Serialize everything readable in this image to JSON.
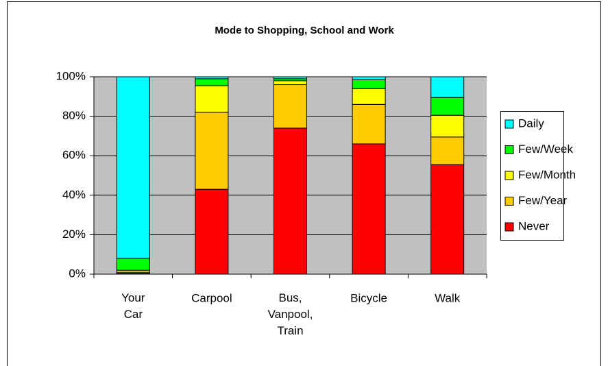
{
  "chart_data": {
    "type": "stacked_bar",
    "title": "Mode to Shopping, School and Work",
    "categories": [
      "Your Car",
      "Carpool",
      "Bus, Vanpool, Train",
      "Bicycle",
      "Walk"
    ],
    "series": [
      {
        "name": "Never",
        "color": "#ff0000",
        "values": [
          0.5,
          43,
          74,
          66,
          55.5
        ]
      },
      {
        "name": "Few/Year",
        "color": "#ffcc00",
        "values": [
          0.5,
          39,
          22,
          20,
          14
        ]
      },
      {
        "name": "Few/Month",
        "color": "#ffff00",
        "values": [
          1,
          13.5,
          2,
          8,
          11
        ]
      },
      {
        "name": "Few/Week",
        "color": "#00ff00",
        "values": [
          6,
          3.5,
          1,
          4.5,
          9
        ]
      },
      {
        "name": "Daily",
        "color": "#00ffff",
        "values": [
          92,
          1,
          1,
          1.5,
          10.5
        ]
      }
    ],
    "ylim": [
      0,
      100
    ],
    "yticks": [
      {
        "value": 0,
        "label": "0%"
      },
      {
        "value": 20,
        "label": "20%"
      },
      {
        "value": 40,
        "label": "40%"
      },
      {
        "value": 60,
        "label": "60%"
      },
      {
        "value": 80,
        "label": "80%"
      },
      {
        "value": 100,
        "label": "100%"
      }
    ],
    "grid": true,
    "legend": "right",
    "plot_background": "#c0c0c0"
  }
}
